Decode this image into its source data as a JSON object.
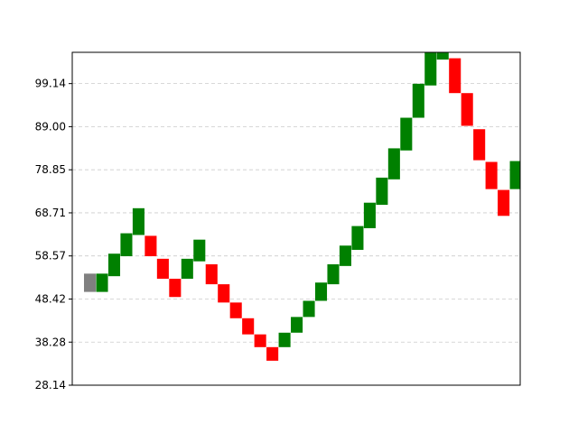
{
  "chart_data": {
    "type": "bar",
    "title": "",
    "xlabel": "",
    "ylabel": "",
    "ylim": [
      28.14,
      106.5
    ],
    "yticks": [
      "28.14",
      "38.28",
      "48.42",
      "58.57",
      "68.71",
      "78.85",
      "89.00",
      "99.14"
    ],
    "ytick_values": [
      28.14,
      38.28,
      48.42,
      58.57,
      68.71,
      78.85,
      89.0,
      99.14
    ],
    "grid": "horizontal dashed",
    "colors": {
      "up": "#008000",
      "down": "#ff0000",
      "neutral": "#808080",
      "grid": "#cccccc"
    },
    "bricks": [
      {
        "low": 50.1,
        "high": 54.4,
        "dir": "neutral"
      },
      {
        "low": 50.1,
        "high": 54.4,
        "dir": "up"
      },
      {
        "low": 53.8,
        "high": 59.1,
        "dir": "up"
      },
      {
        "low": 58.5,
        "high": 63.9,
        "dir": "up"
      },
      {
        "low": 63.5,
        "high": 69.8,
        "dir": "up"
      },
      {
        "low": 58.5,
        "high": 63.3,
        "dir": "down"
      },
      {
        "low": 53.2,
        "high": 57.9,
        "dir": "down"
      },
      {
        "low": 48.9,
        "high": 53.2,
        "dir": "down"
      },
      {
        "low": 53.2,
        "high": 57.9,
        "dir": "up"
      },
      {
        "low": 57.3,
        "high": 62.4,
        "dir": "up"
      },
      {
        "low": 51.9,
        "high": 56.6,
        "dir": "down"
      },
      {
        "low": 47.6,
        "high": 51.9,
        "dir": "down"
      },
      {
        "low": 43.9,
        "high": 47.6,
        "dir": "down"
      },
      {
        "low": 40.1,
        "high": 43.9,
        "dir": "down"
      },
      {
        "low": 37.1,
        "high": 40.1,
        "dir": "down"
      },
      {
        "low": 33.9,
        "high": 37.1,
        "dir": "down"
      },
      {
        "low": 37.1,
        "high": 40.5,
        "dir": "up"
      },
      {
        "low": 40.5,
        "high": 44.2,
        "dir": "up"
      },
      {
        "low": 44.2,
        "high": 48.0,
        "dir": "up"
      },
      {
        "low": 48.0,
        "high": 52.3,
        "dir": "up"
      },
      {
        "low": 51.9,
        "high": 56.6,
        "dir": "up"
      },
      {
        "low": 56.2,
        "high": 61.0,
        "dir": "up"
      },
      {
        "low": 60.0,
        "high": 65.6,
        "dir": "up"
      },
      {
        "low": 65.1,
        "high": 71.1,
        "dir": "up"
      },
      {
        "low": 70.6,
        "high": 77.0,
        "dir": "up"
      },
      {
        "low": 76.6,
        "high": 83.9,
        "dir": "up"
      },
      {
        "low": 83.4,
        "high": 91.1,
        "dir": "up"
      },
      {
        "low": 91.1,
        "high": 99.1,
        "dir": "up"
      },
      {
        "low": 98.7,
        "high": 107.3,
        "dir": "up"
      },
      {
        "low": 104.8,
        "high": 106.8,
        "dir": "up"
      },
      {
        "low": 96.9,
        "high": 105.1,
        "dir": "down"
      },
      {
        "low": 89.2,
        "high": 96.9,
        "dir": "down"
      },
      {
        "low": 81.1,
        "high": 88.4,
        "dir": "down"
      },
      {
        "low": 74.3,
        "high": 80.7,
        "dir": "down"
      },
      {
        "low": 68.0,
        "high": 74.1,
        "dir": "down"
      },
      {
        "low": 74.3,
        "high": 80.9,
        "dir": "up"
      }
    ]
  }
}
